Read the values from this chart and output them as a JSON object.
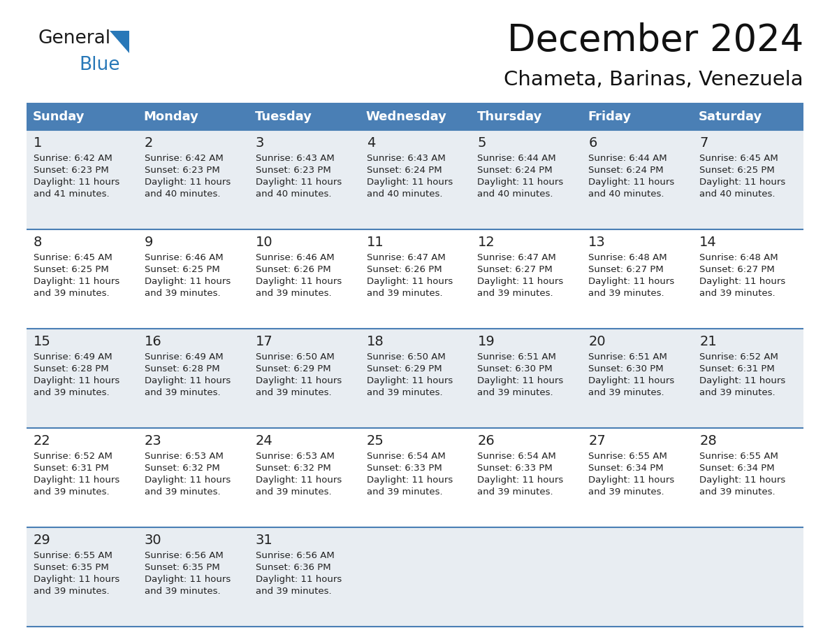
{
  "title": "December 2024",
  "subtitle": "Chameta, Barinas, Venezuela",
  "header_color": "#4a7fb5",
  "header_text_color": "#ffffff",
  "cell_bg_white": "#ffffff",
  "cell_bg_gray": "#e8edf2",
  "border_color": "#4a7fb5",
  "text_color": "#222222",
  "days_of_week": [
    "Sunday",
    "Monday",
    "Tuesday",
    "Wednesday",
    "Thursday",
    "Friday",
    "Saturday"
  ],
  "weeks": [
    [
      {
        "day": 1,
        "sunrise": "6:42 AM",
        "sunset": "6:23 PM",
        "daylight_h": "11 hours",
        "daylight_m": "and 41 minutes."
      },
      {
        "day": 2,
        "sunrise": "6:42 AM",
        "sunset": "6:23 PM",
        "daylight_h": "11 hours",
        "daylight_m": "and 40 minutes."
      },
      {
        "day": 3,
        "sunrise": "6:43 AM",
        "sunset": "6:23 PM",
        "daylight_h": "11 hours",
        "daylight_m": "and 40 minutes."
      },
      {
        "day": 4,
        "sunrise": "6:43 AM",
        "sunset": "6:24 PM",
        "daylight_h": "11 hours",
        "daylight_m": "and 40 minutes."
      },
      {
        "day": 5,
        "sunrise": "6:44 AM",
        "sunset": "6:24 PM",
        "daylight_h": "11 hours",
        "daylight_m": "and 40 minutes."
      },
      {
        "day": 6,
        "sunrise": "6:44 AM",
        "sunset": "6:24 PM",
        "daylight_h": "11 hours",
        "daylight_m": "and 40 minutes."
      },
      {
        "day": 7,
        "sunrise": "6:45 AM",
        "sunset": "6:25 PM",
        "daylight_h": "11 hours",
        "daylight_m": "and 40 minutes."
      }
    ],
    [
      {
        "day": 8,
        "sunrise": "6:45 AM",
        "sunset": "6:25 PM",
        "daylight_h": "11 hours",
        "daylight_m": "and 39 minutes."
      },
      {
        "day": 9,
        "sunrise": "6:46 AM",
        "sunset": "6:25 PM",
        "daylight_h": "11 hours",
        "daylight_m": "and 39 minutes."
      },
      {
        "day": 10,
        "sunrise": "6:46 AM",
        "sunset": "6:26 PM",
        "daylight_h": "11 hours",
        "daylight_m": "and 39 minutes."
      },
      {
        "day": 11,
        "sunrise": "6:47 AM",
        "sunset": "6:26 PM",
        "daylight_h": "11 hours",
        "daylight_m": "and 39 minutes."
      },
      {
        "day": 12,
        "sunrise": "6:47 AM",
        "sunset": "6:27 PM",
        "daylight_h": "11 hours",
        "daylight_m": "and 39 minutes."
      },
      {
        "day": 13,
        "sunrise": "6:48 AM",
        "sunset": "6:27 PM",
        "daylight_h": "11 hours",
        "daylight_m": "and 39 minutes."
      },
      {
        "day": 14,
        "sunrise": "6:48 AM",
        "sunset": "6:27 PM",
        "daylight_h": "11 hours",
        "daylight_m": "and 39 minutes."
      }
    ],
    [
      {
        "day": 15,
        "sunrise": "6:49 AM",
        "sunset": "6:28 PM",
        "daylight_h": "11 hours",
        "daylight_m": "and 39 minutes."
      },
      {
        "day": 16,
        "sunrise": "6:49 AM",
        "sunset": "6:28 PM",
        "daylight_h": "11 hours",
        "daylight_m": "and 39 minutes."
      },
      {
        "day": 17,
        "sunrise": "6:50 AM",
        "sunset": "6:29 PM",
        "daylight_h": "11 hours",
        "daylight_m": "and 39 minutes."
      },
      {
        "day": 18,
        "sunrise": "6:50 AM",
        "sunset": "6:29 PM",
        "daylight_h": "11 hours",
        "daylight_m": "and 39 minutes."
      },
      {
        "day": 19,
        "sunrise": "6:51 AM",
        "sunset": "6:30 PM",
        "daylight_h": "11 hours",
        "daylight_m": "and 39 minutes."
      },
      {
        "day": 20,
        "sunrise": "6:51 AM",
        "sunset": "6:30 PM",
        "daylight_h": "11 hours",
        "daylight_m": "and 39 minutes."
      },
      {
        "day": 21,
        "sunrise": "6:52 AM",
        "sunset": "6:31 PM",
        "daylight_h": "11 hours",
        "daylight_m": "and 39 minutes."
      }
    ],
    [
      {
        "day": 22,
        "sunrise": "6:52 AM",
        "sunset": "6:31 PM",
        "daylight_h": "11 hours",
        "daylight_m": "and 39 minutes."
      },
      {
        "day": 23,
        "sunrise": "6:53 AM",
        "sunset": "6:32 PM",
        "daylight_h": "11 hours",
        "daylight_m": "and 39 minutes."
      },
      {
        "day": 24,
        "sunrise": "6:53 AM",
        "sunset": "6:32 PM",
        "daylight_h": "11 hours",
        "daylight_m": "and 39 minutes."
      },
      {
        "day": 25,
        "sunrise": "6:54 AM",
        "sunset": "6:33 PM",
        "daylight_h": "11 hours",
        "daylight_m": "and 39 minutes."
      },
      {
        "day": 26,
        "sunrise": "6:54 AM",
        "sunset": "6:33 PM",
        "daylight_h": "11 hours",
        "daylight_m": "and 39 minutes."
      },
      {
        "day": 27,
        "sunrise": "6:55 AM",
        "sunset": "6:34 PM",
        "daylight_h": "11 hours",
        "daylight_m": "and 39 minutes."
      },
      {
        "day": 28,
        "sunrise": "6:55 AM",
        "sunset": "6:34 PM",
        "daylight_h": "11 hours",
        "daylight_m": "and 39 minutes."
      }
    ],
    [
      {
        "day": 29,
        "sunrise": "6:55 AM",
        "sunset": "6:35 PM",
        "daylight_h": "11 hours",
        "daylight_m": "and 39 minutes."
      },
      {
        "day": 30,
        "sunrise": "6:56 AM",
        "sunset": "6:35 PM",
        "daylight_h": "11 hours",
        "daylight_m": "and 39 minutes."
      },
      {
        "day": 31,
        "sunrise": "6:56 AM",
        "sunset": "6:36 PM",
        "daylight_h": "11 hours",
        "daylight_m": "and 39 minutes."
      },
      null,
      null,
      null,
      null
    ]
  ],
  "title_fontsize": 38,
  "subtitle_fontsize": 21,
  "header_fontsize": 13,
  "day_num_fontsize": 14,
  "cell_text_fontsize": 9.5
}
